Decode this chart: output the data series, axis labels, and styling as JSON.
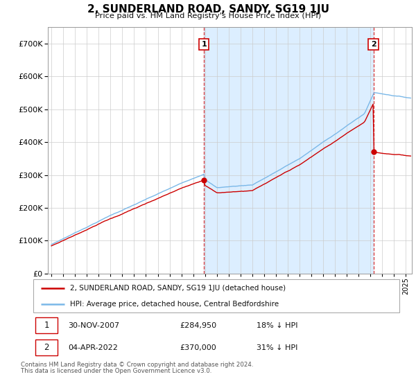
{
  "title": "2, SUNDERLAND ROAD, SANDY, SG19 1JU",
  "subtitle": "Price paid vs. HM Land Registry's House Price Index (HPI)",
  "ylim": [
    0,
    750000
  ],
  "xlim_start": 1994.7,
  "xlim_end": 2025.5,
  "hpi_color": "#7ab8e8",
  "price_color": "#cc0000",
  "shade_color": "#dceeff",
  "grid_color": "#cccccc",
  "bg_color": "#ffffff",
  "t1": 2007.917,
  "t2": 2022.25,
  "p1": 284950,
  "p2": 370000,
  "annotation1_label": "1",
  "annotation2_label": "2",
  "legend_line1": "2, SUNDERLAND ROAD, SANDY, SG19 1JU (detached house)",
  "legend_line2": "HPI: Average price, detached house, Central Bedfordshire",
  "table_row1": [
    "1",
    "30-NOV-2007",
    "£284,950",
    "18% ↓ HPI"
  ],
  "table_row2": [
    "2",
    "04-APR-2022",
    "£370,000",
    "31% ↓ HPI"
  ],
  "footnote1": "Contains HM Land Registry data © Crown copyright and database right 2024.",
  "footnote2": "This data is licensed under the Open Government Licence v3.0.",
  "xlabel_years": [
    1995,
    1996,
    1997,
    1998,
    1999,
    2000,
    2001,
    2002,
    2003,
    2004,
    2005,
    2006,
    2007,
    2008,
    2009,
    2010,
    2011,
    2012,
    2013,
    2014,
    2015,
    2016,
    2017,
    2018,
    2019,
    2020,
    2021,
    2022,
    2023,
    2024,
    2025
  ]
}
